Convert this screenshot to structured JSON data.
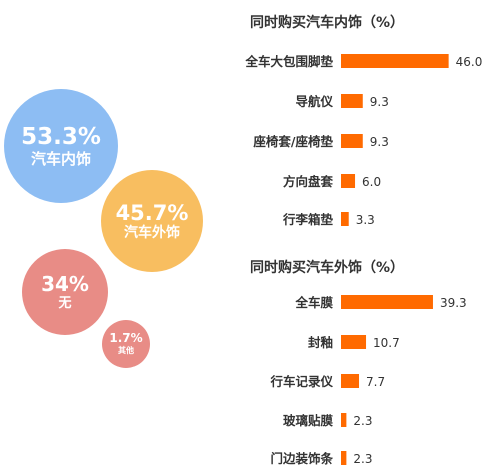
{
  "colors": {
    "bar": "#ff6a00",
    "bubble_interior": "#8dbdf3",
    "bubble_exterior": "#f8be60",
    "bubble_none": "#e88c86",
    "bubble_other": "#e88c86"
  },
  "bubbles": [
    {
      "percent": "53.3%",
      "label": "汽车内饰"
    },
    {
      "percent": "45.7%",
      "label": "汽车外饰"
    },
    {
      "percent": "34%",
      "label": "无"
    },
    {
      "percent": "1.7%",
      "label": "其他"
    }
  ],
  "chart_data": [
    {
      "type": "bar",
      "orientation": "horizontal",
      "title": "同时购买汽车内饰（%）",
      "categories": [
        "全车大包围脚垫",
        "导航仪",
        "座椅套/座椅垫",
        "方向盘套",
        "行李箱垫"
      ],
      "values": [
        46.0,
        9.3,
        9.3,
        6.0,
        3.3
      ],
      "value_labels": [
        "46.0",
        "9.3",
        "9.3",
        "6.0",
        "3.3"
      ]
    },
    {
      "type": "bar",
      "orientation": "horizontal",
      "title": "同时购买汽车外饰（%）",
      "categories": [
        "全车膜",
        "封釉",
        "行车记录仪",
        "玻璃贴膜",
        "门边装饰条"
      ],
      "values": [
        39.3,
        10.7,
        7.7,
        2.3,
        2.3
      ],
      "value_labels": [
        "39.3",
        "10.7",
        "7.7",
        "2.3",
        "2.3"
      ]
    }
  ]
}
